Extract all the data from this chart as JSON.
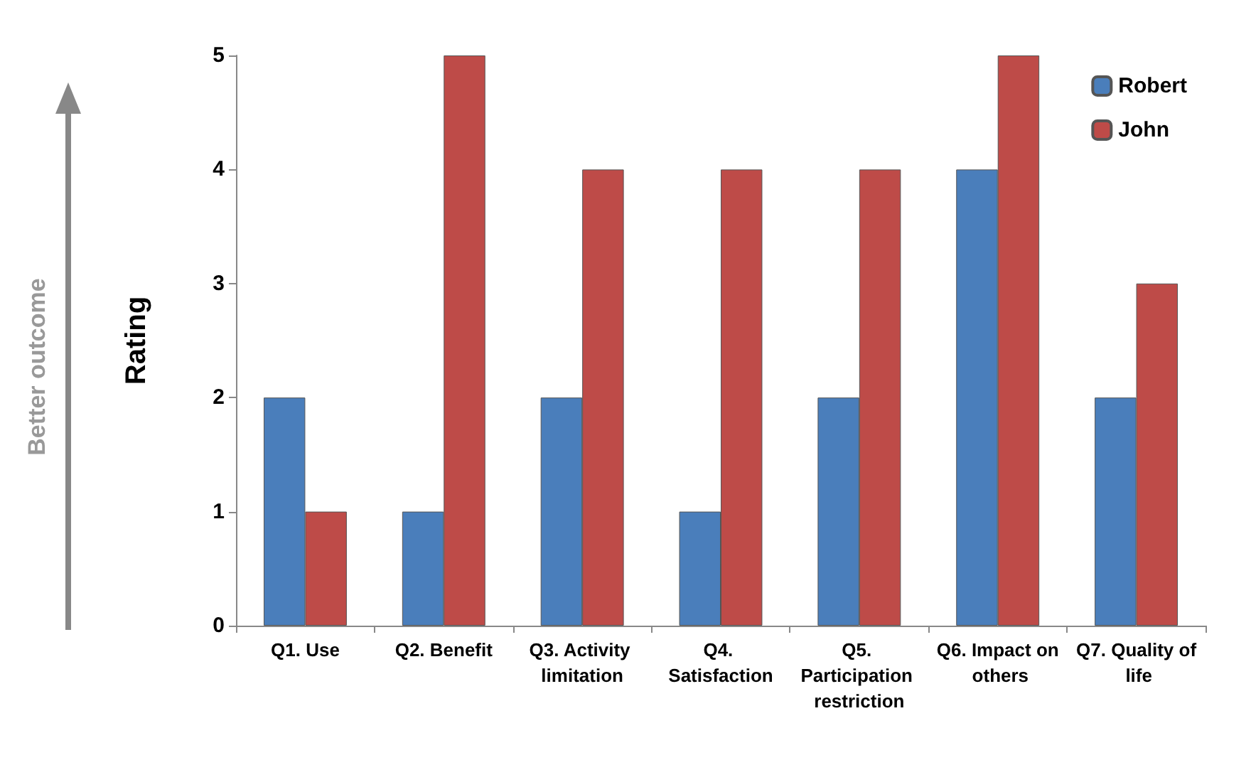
{
  "chart_data": {
    "type": "bar",
    "ylabel": "Rating",
    "categories": [
      "Q1. Use",
      "Q2. Benefit",
      "Q3. Activity limitation",
      "Q4. Satisfaction",
      "Q5. Participation restriction",
      "Q6. Impact on others",
      "Q7. Quality of life"
    ],
    "series": [
      {
        "name": "Robert",
        "color": "#4a7ebb",
        "values": [
          2,
          1,
          2,
          1,
          2,
          4,
          2
        ]
      },
      {
        "name": "John",
        "color": "#be4b48",
        "values": [
          1,
          5,
          4,
          4,
          4,
          5,
          3
        ]
      }
    ],
    "ylim": [
      0,
      5
    ],
    "yticks": [
      0,
      1,
      2,
      3,
      4,
      5
    ],
    "grid": false,
    "legend": "top right",
    "annotations": [
      "Better outcome"
    ]
  }
}
